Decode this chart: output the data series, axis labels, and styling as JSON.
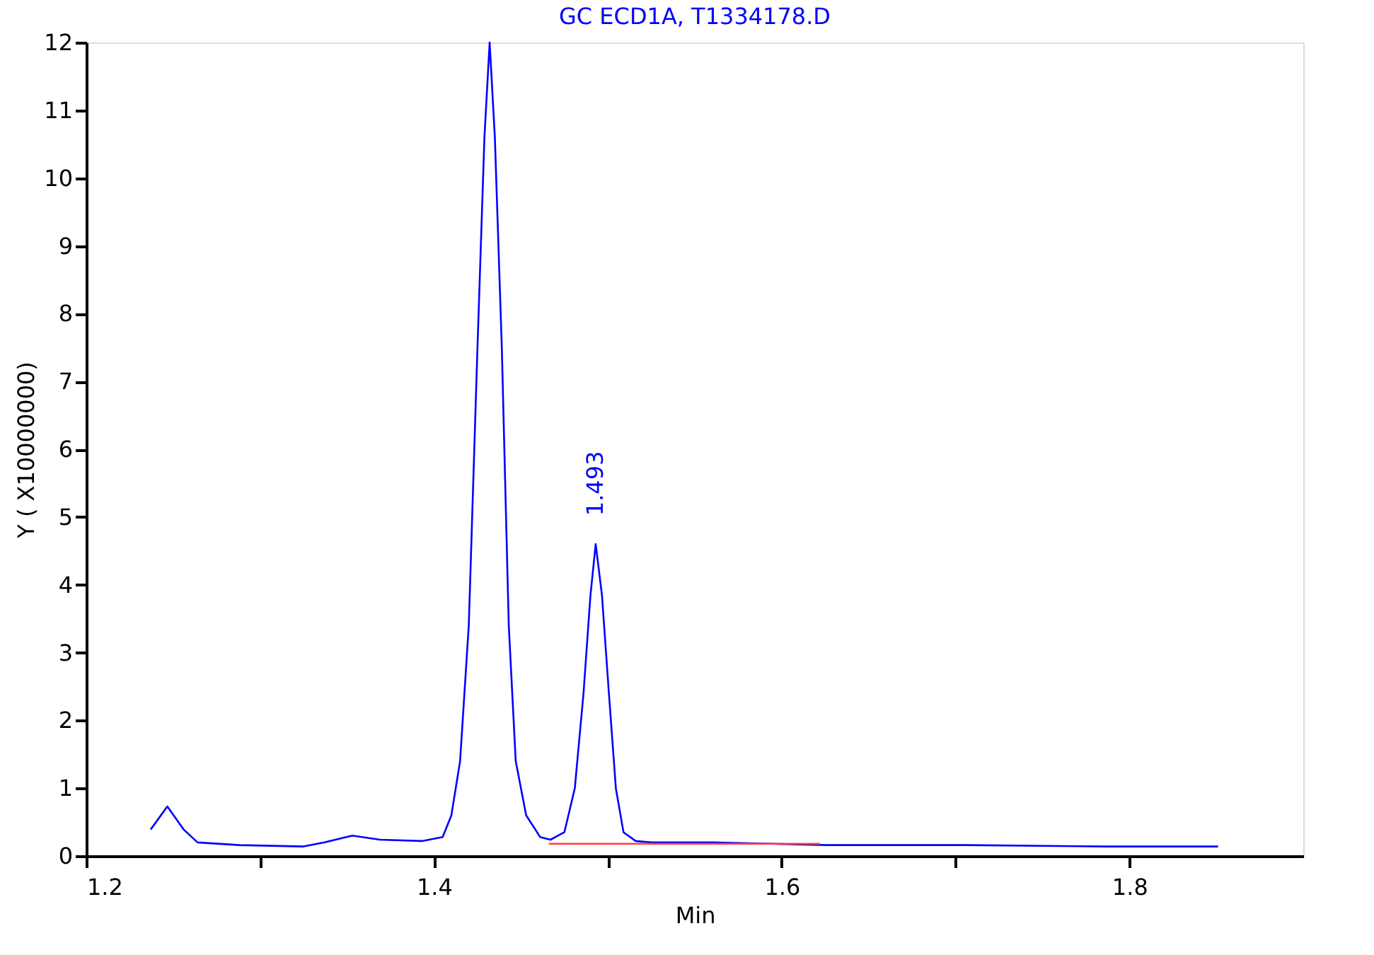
{
  "chart_data": {
    "type": "line",
    "title": "GC ECD1A, T1334178.D",
    "xlabel": "Min",
    "ylabel": "Y ( X10000000)",
    "xlim": [
      1.2,
      1.9
    ],
    "xticks": [
      1.2,
      {
        "value": 1.3,
        "label": null
      },
      1.4,
      {
        "value": 1.5,
        "label": null
      },
      1.6,
      {
        "value": 1.7,
        "label": null
      },
      1.8
    ],
    "ylim": [
      0,
      12
    ],
    "yticks": [
      0,
      1,
      2,
      3,
      4,
      5,
      6,
      7,
      8,
      9,
      10,
      11,
      12
    ],
    "grid": false,
    "annotations": [
      {
        "text": "1.493",
        "x": 1.493,
        "y": 4.6
      }
    ],
    "series": [
      {
        "color": "#0000ff",
        "x": [
          1.237,
          1.2466,
          1.256,
          1.264,
          1.288,
          1.325,
          1.337,
          1.353,
          1.369,
          1.393,
          1.405,
          1.41,
          1.415,
          1.42,
          1.425,
          1.429,
          1.432,
          1.435,
          1.439,
          1.443,
          1.447,
          1.453,
          1.461,
          1.467,
          1.475,
          1.481,
          1.486,
          1.49,
          1.493,
          1.4966,
          1.5006,
          1.5046,
          1.509,
          1.516,
          1.525,
          1.561,
          1.626,
          1.706,
          1.786,
          1.851
        ],
        "values": [
          0.39,
          0.73,
          0.39,
          0.2,
          0.16,
          0.14,
          0.2,
          0.3,
          0.24,
          0.22,
          0.28,
          0.6,
          1.4,
          3.4,
          7.5,
          10.6,
          12,
          10.6,
          7.5,
          3.4,
          1.4,
          0.6,
          0.28,
          0.24,
          0.35,
          1.0,
          2.4,
          3.85,
          4.6,
          3.85,
          2.4,
          1.0,
          0.35,
          0.22,
          0.2,
          0.2,
          0.16,
          0.16,
          0.14,
          0.14
        ]
      },
      {
        "color": "#ff4040",
        "x": [
          1.466,
          1.622
        ],
        "values": [
          0.18,
          0.18
        ]
      }
    ]
  }
}
